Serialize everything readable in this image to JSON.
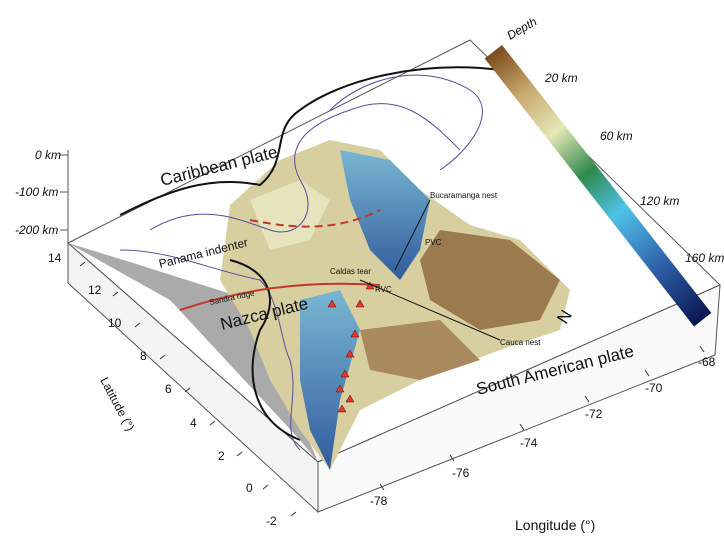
{
  "colorbar": {
    "title": "Depth",
    "labels": [
      "20 km",
      "60 km",
      "120 km",
      "160 km"
    ]
  },
  "depth_axis": [
    "0 km",
    "-100 km",
    "-200 km"
  ],
  "labels": {
    "caribbean": "Caribbean plate",
    "panama": "Panama indenter",
    "sandra": "Sandra ridge",
    "caldas": "Caldas tear",
    "rvc": "RVC",
    "pvc": "PVC",
    "bucaramanga": "Bucaramanga nest",
    "nazca": "Nazca plate",
    "cauca": "Cauca nest",
    "south_american": "South American plate",
    "north": "N"
  },
  "latitude": {
    "title": "Latitude (°)",
    "ticks": [
      "14",
      "12",
      "10",
      "8",
      "6",
      "4",
      "2",
      "0",
      "-2"
    ]
  },
  "longitude": {
    "title": "Longitude (°)",
    "ticks": [
      "-78",
      "-76",
      "-74",
      "-72",
      "-70",
      "-68"
    ]
  }
}
